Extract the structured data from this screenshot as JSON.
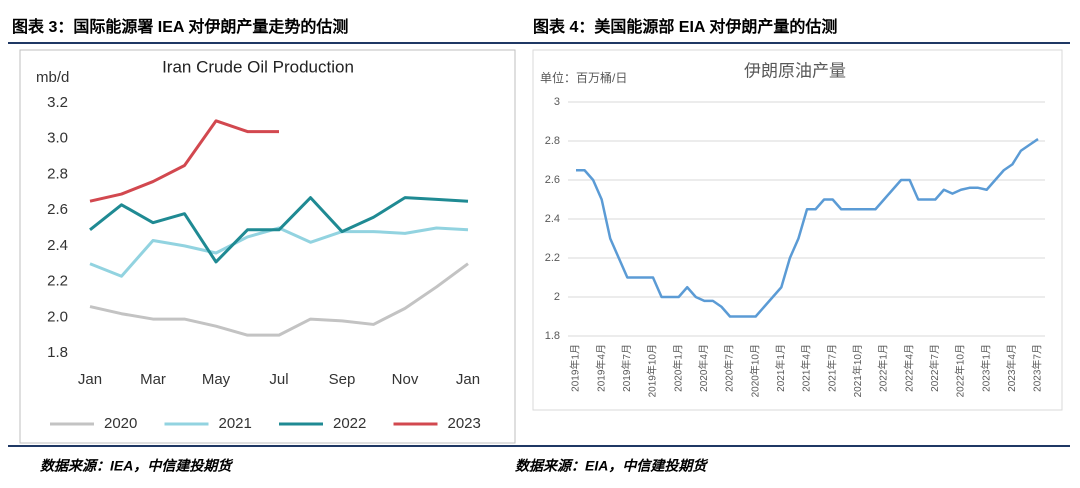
{
  "chart_data": [
    {
      "type": "line",
      "heading": "图表 3：国际能源署 IEA 对伊朗产量走势的估测",
      "source": "数据来源：IEA，中信建投期货",
      "title": "Iran Crude Oil Production",
      "y_label": "mb/d",
      "categories": [
        "Jan",
        null,
        "Mar",
        null,
        "May",
        null,
        "Jul",
        null,
        "Sep",
        null,
        "Nov",
        null,
        "Jan"
      ],
      "series": [
        {
          "name": "2020",
          "color": "#c3c3c3",
          "values": [
            2.06,
            2.02,
            1.99,
            1.99,
            1.95,
            1.9,
            1.9,
            1.99,
            1.98,
            1.96,
            2.05,
            2.17,
            2.3
          ]
        },
        {
          "name": "2021",
          "color": "#92d3e0",
          "values": [
            2.3,
            2.23,
            2.43,
            2.4,
            2.36,
            2.45,
            2.5,
            2.42,
            2.48,
            2.48,
            2.47,
            2.5,
            2.49
          ]
        },
        {
          "name": "2022",
          "color": "#1f8a93",
          "values": [
            2.49,
            2.63,
            2.53,
            2.58,
            2.31,
            2.49,
            2.49,
            2.67,
            2.48,
            2.56,
            2.67,
            2.66,
            2.65
          ]
        },
        {
          "name": "2023",
          "color": "#d2484f",
          "values": [
            2.65,
            2.69,
            2.76,
            2.85,
            3.1,
            3.04,
            3.04,
            null,
            null,
            null,
            null,
            null,
            null
          ]
        }
      ],
      "ylim": [
        1.8,
        3.2
      ],
      "yticks": [
        1.8,
        {
          "value": 2,
          "label": "2.0"
        },
        2.2,
        2.4,
        2.6,
        2.8,
        {
          "value": 3,
          "label": "3.0"
        },
        3.2
      ],
      "grid": false,
      "legend": "bottom"
    },
    {
      "type": "line",
      "heading": "图表 4：美国能源部 EIA 对伊朗产量的估测",
      "source": "数据来源：EIA，中信建投期货",
      "title": "伊朗原油产量",
      "y_label": "单位：百万桶/日",
      "categories": [
        "2019年1月",
        null,
        null,
        "2019年4月",
        null,
        null,
        "2019年7月",
        null,
        null,
        "2019年10月",
        null,
        null,
        "2020年1月",
        null,
        null,
        "2020年4月",
        null,
        null,
        "2020年7月",
        null,
        null,
        "2020年10月",
        null,
        null,
        "2021年1月",
        null,
        null,
        "2021年4月",
        null,
        null,
        "2021年7月",
        null,
        null,
        "2021年10月",
        null,
        null,
        "2022年1月",
        null,
        null,
        "2022年4月",
        null,
        null,
        "2022年7月",
        null,
        null,
        "2022年10月",
        null,
        null,
        "2023年1月",
        null,
        null,
        "2023年4月",
        null,
        null,
        "2023年7月"
      ],
      "series": [
        {
          "color": "#5b9bd5",
          "values": [
            2.65,
            2.65,
            2.6,
            2.5,
            2.3,
            2.2,
            2.1,
            2.1,
            2.1,
            2.1,
            2.0,
            2.0,
            2.0,
            2.05,
            2.0,
            1.98,
            1.98,
            1.95,
            1.9,
            1.9,
            1.9,
            1.9,
            1.95,
            2.0,
            2.05,
            2.2,
            2.3,
            2.45,
            2.45,
            2.5,
            2.5,
            2.45,
            2.45,
            2.45,
            2.45,
            2.45,
            2.5,
            2.55,
            2.6,
            2.6,
            2.5,
            2.5,
            2.5,
            2.55,
            2.53,
            2.55,
            2.56,
            2.56,
            2.55,
            2.6,
            2.65,
            2.68,
            2.75,
            2.78,
            2.81
          ]
        }
      ],
      "ylim": [
        1.8,
        3
      ],
      "yticks": [
        1.8,
        2,
        2.2,
        2.4,
        2.6,
        2.8,
        3
      ],
      "grid": true
    }
  ]
}
